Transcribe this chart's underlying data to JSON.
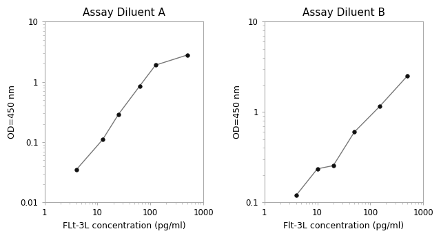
{
  "chart_A": {
    "title": "Assay Diluent A",
    "x": [
      4,
      12.5,
      25,
      62.5,
      125,
      500
    ],
    "y": [
      0.035,
      0.11,
      0.29,
      0.85,
      1.9,
      2.8
    ],
    "xlim": [
      1,
      1000
    ],
    "ylim": [
      0.01,
      10
    ],
    "xlabel": "FLt-3L concentration (pg/ml)",
    "ylabel": "OD=450 nm"
  },
  "chart_B": {
    "title": "Assay Diluent B",
    "x": [
      4,
      10,
      20,
      50,
      150,
      500
    ],
    "y": [
      0.12,
      0.235,
      0.255,
      0.6,
      1.15,
      2.5
    ],
    "xlim": [
      1,
      1000
    ],
    "ylim": [
      0.1,
      10
    ],
    "xlabel": "Flt-3L concentration (pg/ml)",
    "ylabel": "OD=450 nm"
  },
  "line_color": "#777777",
  "marker_color": "#111111",
  "marker_size": 4,
  "line_width": 1.0,
  "title_fontsize": 11,
  "label_fontsize": 9,
  "tick_fontsize": 8.5,
  "bg_color": "#ffffff",
  "plot_bg_color": "#ffffff",
  "spine_color": "#aaaaaa"
}
